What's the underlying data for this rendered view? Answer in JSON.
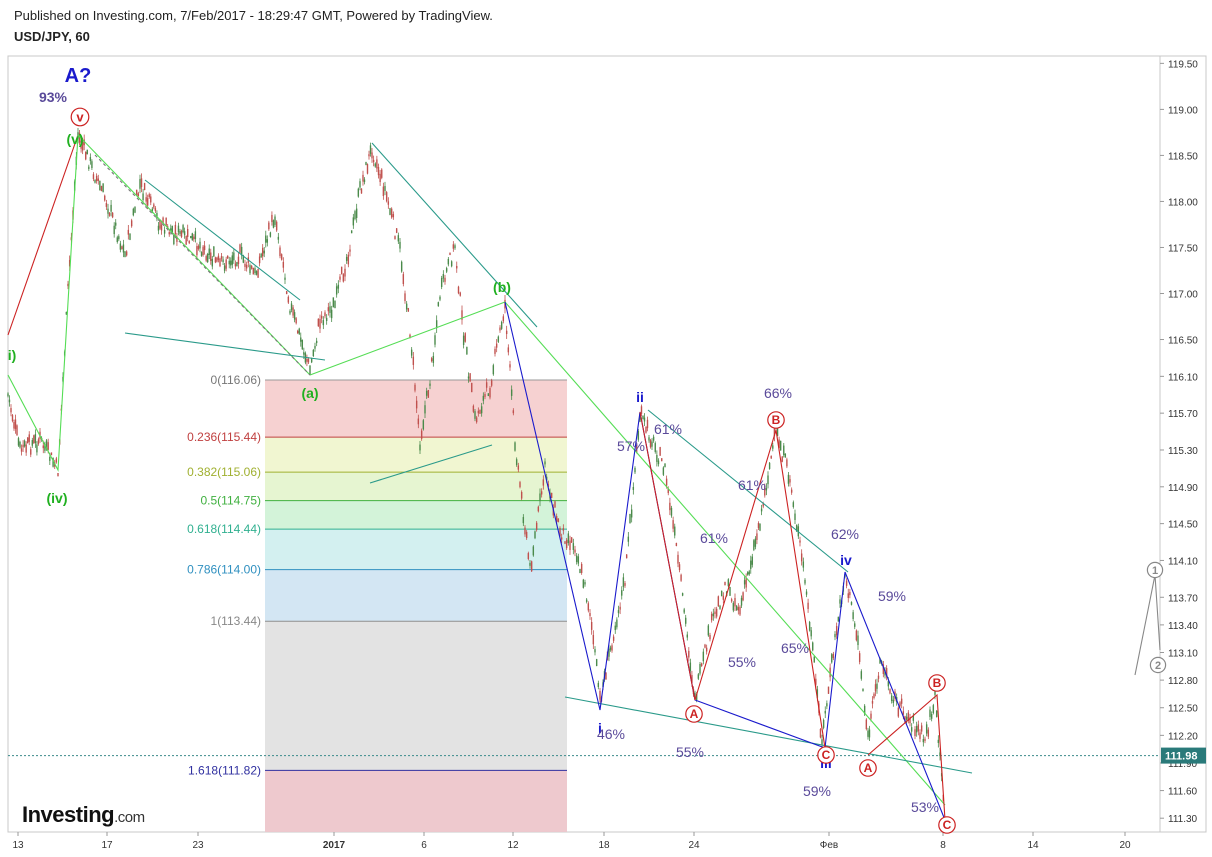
{
  "header": {
    "published": "Published on Investing.com, 7/Feb/2017 - 18:29:47 GMT, Powered by TradingView.",
    "symbol": "USD/JPY, 60"
  },
  "logo": {
    "brand": "Investing",
    "suffix": ".com"
  },
  "colors": {
    "up": "#4a8a4a",
    "down": "#c0504d",
    "blue": "#1a1acc",
    "green": "#20b020",
    "red": "#cc2222",
    "purple": "#5a4a9a",
    "teal": "#2a9a8a",
    "lime": "#55dd55"
  },
  "chart_data": {
    "type": "candlestick",
    "symbol": "USD/JPY",
    "timeframe": "60",
    "ylim": [
      111.15,
      119.58
    ],
    "y_ticks": [
      "119.50",
      "119.00",
      "118.50",
      "118.00",
      "117.50",
      "117.00",
      "116.50",
      "116.10",
      "115.70",
      "115.30",
      "114.90",
      "114.50",
      "114.10",
      "113.70",
      "113.40",
      "113.10",
      "112.80",
      "112.50",
      "112.20",
      "111.90",
      "111.60",
      "111.30"
    ],
    "x_ticks": [
      {
        "label": "13",
        "x": 18
      },
      {
        "label": "17",
        "x": 107
      },
      {
        "label": "23",
        "x": 198
      },
      {
        "label": "2017",
        "x": 334
      },
      {
        "label": "6",
        "x": 424
      },
      {
        "label": "12",
        "x": 513
      },
      {
        "label": "18",
        "x": 604
      },
      {
        "label": "24",
        "x": 694
      },
      {
        "label": "Фев",
        "x": 829
      },
      {
        "label": "8",
        "x": 943
      },
      {
        "label": "14",
        "x": 1033
      },
      {
        "label": "20",
        "x": 1125
      }
    ],
    "last_price": "111.98",
    "price_path": [
      [
        8,
        395
      ],
      [
        20,
        450
      ],
      [
        40,
        440
      ],
      [
        58,
        470
      ],
      [
        68,
        290
      ],
      [
        78,
        135
      ],
      [
        95,
        175
      ],
      [
        108,
        205
      ],
      [
        125,
        255
      ],
      [
        140,
        185
      ],
      [
        160,
        225
      ],
      [
        180,
        235
      ],
      [
        200,
        245
      ],
      [
        220,
        265
      ],
      [
        240,
        255
      ],
      [
        255,
        275
      ],
      [
        275,
        215
      ],
      [
        290,
        305
      ],
      [
        310,
        370
      ],
      [
        320,
        320
      ],
      [
        335,
        305
      ],
      [
        350,
        245
      ],
      [
        360,
        190
      ],
      [
        372,
        148
      ],
      [
        385,
        190
      ],
      [
        400,
        250
      ],
      [
        410,
        330
      ],
      [
        420,
        440
      ],
      [
        430,
        380
      ],
      [
        440,
        295
      ],
      [
        455,
        245
      ],
      [
        462,
        320
      ],
      [
        475,
        420
      ],
      [
        490,
        385
      ],
      [
        505,
        305
      ],
      [
        515,
        440
      ],
      [
        530,
        570
      ],
      [
        545,
        470
      ],
      [
        560,
        530
      ],
      [
        575,
        545
      ],
      [
        590,
        610
      ],
      [
        600,
        700
      ],
      [
        612,
        640
      ],
      [
        625,
        580
      ],
      [
        640,
        415
      ],
      [
        652,
        440
      ],
      [
        665,
        470
      ],
      [
        678,
        560
      ],
      [
        695,
        700
      ],
      [
        710,
        630
      ],
      [
        725,
        585
      ],
      [
        740,
        610
      ],
      [
        760,
        520
      ],
      [
        776,
        430
      ],
      [
        790,
        480
      ],
      [
        805,
        580
      ],
      [
        822,
        740
      ],
      [
        835,
        640
      ],
      [
        845,
        575
      ],
      [
        858,
        640
      ],
      [
        868,
        740
      ],
      [
        880,
        660
      ],
      [
        895,
        700
      ],
      [
        910,
        720
      ],
      [
        925,
        740
      ],
      [
        935,
        700
      ],
      [
        945,
        820
      ]
    ],
    "fibonacci": {
      "levels": [
        {
          "ratio": "0",
          "price": "116.06",
          "label": "0(116.06)"
        },
        {
          "ratio": "0.236",
          "price": "115.44",
          "label": "0.236(115.44)"
        },
        {
          "ratio": "0.382",
          "price": "115.06",
          "label": "0.382(115.06)"
        },
        {
          "ratio": "0.5",
          "price": "114.75",
          "label": "0.5(114.75)"
        },
        {
          "ratio": "0.618",
          "price": "114.44",
          "label": "0.618(114.44)"
        },
        {
          "ratio": "0.786",
          "price": "114.00",
          "label": "0.786(114.00)"
        },
        {
          "ratio": "1",
          "price": "113.44",
          "label": "1(113.44)"
        },
        {
          "ratio": "1.618",
          "price": "111.82",
          "label": "1.618(111.82)"
        }
      ]
    },
    "wave_labels": [
      {
        "text": "A?",
        "color": "blue"
      },
      {
        "text": "93%",
        "color": "purple"
      },
      {
        "text": "v",
        "color": "red",
        "circled": true
      },
      {
        "text": "(v)",
        "color": "green"
      },
      {
        "text": "i)",
        "color": "green"
      },
      {
        "text": "(iv)",
        "color": "green"
      },
      {
        "text": "(a)",
        "color": "green"
      },
      {
        "text": "(b)",
        "color": "green"
      },
      {
        "text": "ii",
        "color": "blue"
      },
      {
        "text": "i",
        "color": "blue"
      },
      {
        "text": "iii",
        "color": "blue"
      },
      {
        "text": "iv",
        "color": "blue"
      },
      {
        "text": "A",
        "color": "red",
        "circled": true
      },
      {
        "text": "B",
        "color": "red",
        "circled": true
      },
      {
        "text": "C",
        "color": "red",
        "circled": true
      },
      {
        "text": "A",
        "color": "red",
        "circled": true
      },
      {
        "text": "B",
        "color": "red",
        "circled": true
      },
      {
        "text": "C",
        "color": "red",
        "circled": true
      },
      {
        "text": "1",
        "color": "gray",
        "circled": true
      },
      {
        "text": "2",
        "color": "gray",
        "circled": true
      }
    ],
    "percent_labels": [
      "57%",
      "61%",
      "46%",
      "61%",
      "55%",
      "55%",
      "66%",
      "61%",
      "65%",
      "62%",
      "59%",
      "59%",
      "53%"
    ]
  }
}
